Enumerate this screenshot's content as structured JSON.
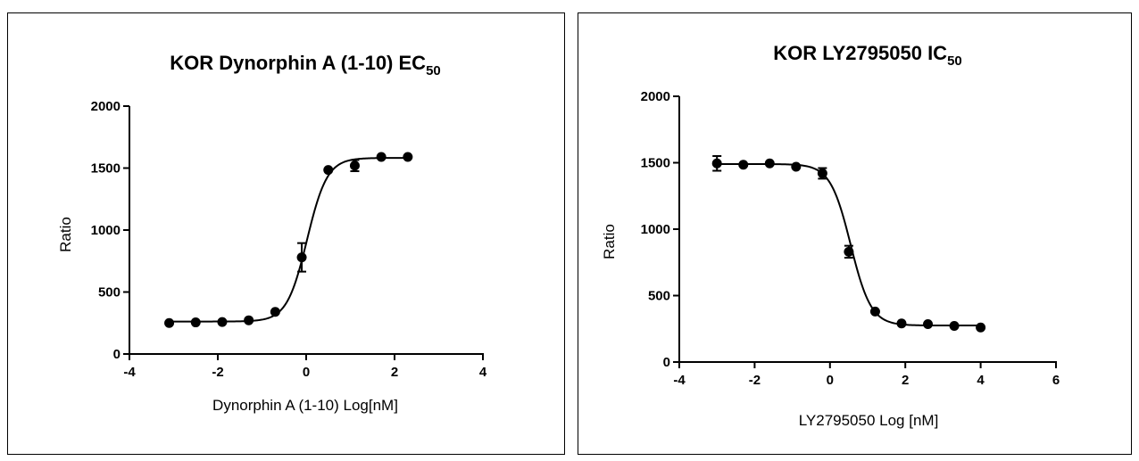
{
  "chart_data": [
    {
      "type": "scatter",
      "title": "KOR Dynorphin A (1-10) EC",
      "title_subscript": "50",
      "xlabel": "Dynorphin A (1-10)  Log[nM]",
      "ylabel": "Ratio",
      "xlim": [
        -4,
        4
      ],
      "ylim": [
        0,
        2000
      ],
      "xticks": [
        -4,
        -2,
        0,
        2,
        4
      ],
      "yticks": [
        0,
        500,
        1000,
        1500,
        2000
      ],
      "fit": {
        "model": "sigmoidal dose-response",
        "bottom": 262,
        "top": 1582,
        "log_ec50": 0.02,
        "hill": 1.9
      },
      "points": [
        {
          "x": -3.1,
          "y": 250,
          "err": 0
        },
        {
          "x": -2.5,
          "y": 255,
          "err": 0
        },
        {
          "x": -1.9,
          "y": 258,
          "err": 0
        },
        {
          "x": -1.3,
          "y": 272,
          "err": 0
        },
        {
          "x": -0.7,
          "y": 340,
          "err": 0
        },
        {
          "x": -0.1,
          "y": 780,
          "err": 115
        },
        {
          "x": 0.5,
          "y": 1485,
          "err": 0
        },
        {
          "x": 1.1,
          "y": 1520,
          "err": 45
        },
        {
          "x": 1.7,
          "y": 1590,
          "err": 0
        },
        {
          "x": 2.3,
          "y": 1590,
          "err": 0
        }
      ]
    },
    {
      "type": "scatter",
      "title": "KOR LY2795050 IC",
      "title_subscript": "50",
      "xlabel": "LY2795050 Log [nM]",
      "ylabel": "Ratio",
      "xlim": [
        -4,
        6
      ],
      "ylim": [
        0,
        2000
      ],
      "xticks": [
        -4,
        -2,
        0,
        2,
        4,
        6
      ],
      "yticks": [
        0,
        500,
        1000,
        1500,
        2000
      ],
      "fit": {
        "model": "sigmoidal dose-response",
        "top": 1490,
        "bottom": 275,
        "log_ic50": 0.55,
        "hill": -1.6
      },
      "points": [
        {
          "x": -3.0,
          "y": 1495,
          "err": 55
        },
        {
          "x": -2.3,
          "y": 1485,
          "err": 0
        },
        {
          "x": -1.6,
          "y": 1495,
          "err": 0
        },
        {
          "x": -0.9,
          "y": 1470,
          "err": 0
        },
        {
          "x": -0.2,
          "y": 1420,
          "err": 40
        },
        {
          "x": 0.5,
          "y": 830,
          "err": 45
        },
        {
          "x": 1.2,
          "y": 380,
          "err": 0
        },
        {
          "x": 1.9,
          "y": 290,
          "err": 0
        },
        {
          "x": 2.6,
          "y": 285,
          "err": 0
        },
        {
          "x": 3.3,
          "y": 272,
          "err": 0
        },
        {
          "x": 4.0,
          "y": 260,
          "err": 0
        }
      ]
    }
  ]
}
